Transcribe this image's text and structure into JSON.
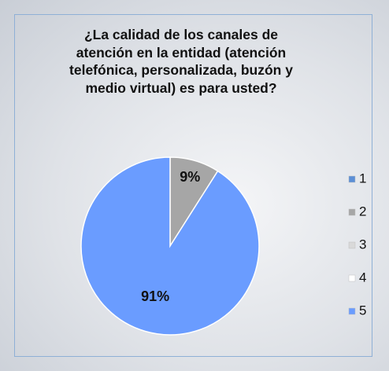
{
  "chart_data": {
    "type": "pie",
    "title": "¿La calidad de los canales de atención en la entidad (atención telefónica, personalizada, buzón y medio virtual) es para usted?",
    "categories": [
      "1",
      "2",
      "3",
      "4",
      "5"
    ],
    "values": [
      0,
      9,
      0,
      0,
      91
    ],
    "value_labels": [
      null,
      "9%",
      null,
      null,
      "91%"
    ],
    "colors": [
      "#5b8fd6",
      "#a6a6a6",
      "#d9d9d9",
      "#ffffff",
      "#6a9cff"
    ],
    "legend": "right"
  }
}
